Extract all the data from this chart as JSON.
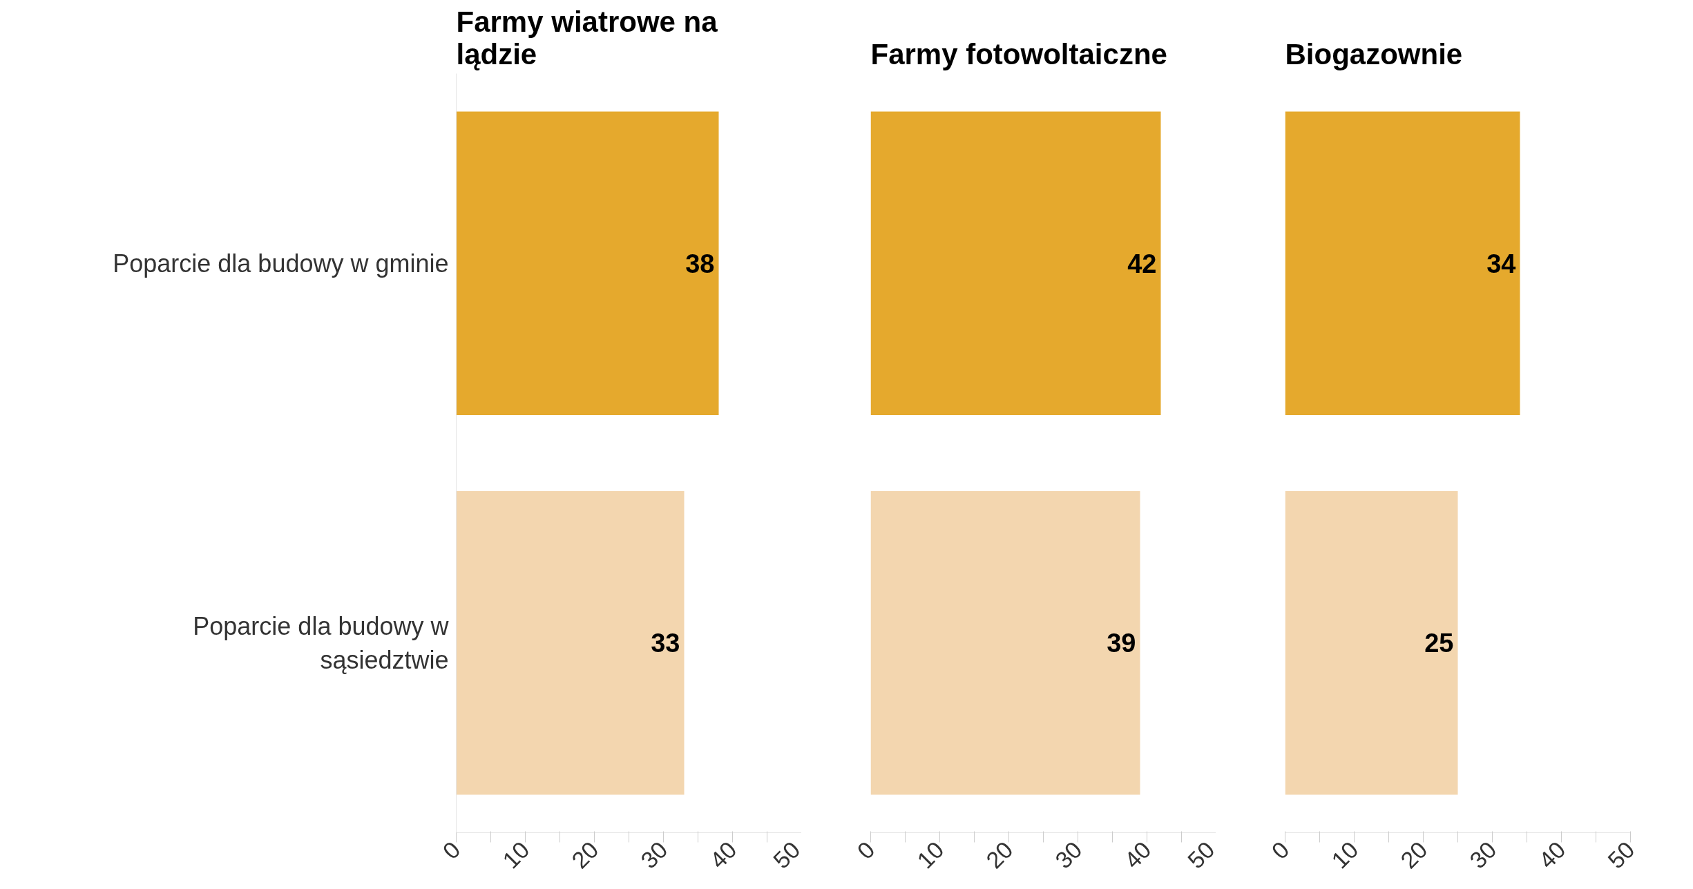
{
  "chart_data": [
    {
      "type": "bar",
      "orientation": "horizontal",
      "title": "Farmy wiatrowe na lądzie",
      "categories": [
        "Poparcie dla budowy w gminie",
        "Poparcie dla budowy w sąsiedztwie"
      ],
      "values": [
        38,
        33
      ],
      "colors": [
        "#e5a92d",
        "#f3d6af"
      ],
      "xlim": [
        0,
        50
      ],
      "xticks": [
        0,
        {
          "value": 5,
          "label": null
        },
        10,
        {
          "value": 15,
          "label": null
        },
        20,
        {
          "value": 25,
          "label": null
        },
        30,
        {
          "value": 35,
          "label": null
        },
        40,
        {
          "value": 45,
          "label": null
        },
        50
      ],
      "data_labels": true,
      "grid": false
    },
    {
      "type": "bar",
      "orientation": "horizontal",
      "title": "Farmy fotowoltaiczne",
      "categories": [
        "Poparcie dla budowy w gminie",
        "Poparcie dla budowy w sąsiedztwie"
      ],
      "values": [
        42,
        39
      ],
      "colors": [
        "#e5a92d",
        "#f3d6af"
      ],
      "xlim": [
        0,
        50
      ],
      "xticks": [
        0,
        {
          "value": 5,
          "label": null
        },
        10,
        {
          "value": 15,
          "label": null
        },
        20,
        {
          "value": 25,
          "label": null
        },
        30,
        {
          "value": 35,
          "label": null
        },
        40,
        {
          "value": 45,
          "label": null
        },
        50
      ],
      "data_labels": true,
      "grid": false,
      "tick_labels": "x"
    },
    {
      "type": "bar",
      "orientation": "horizontal",
      "title": "Biogazownie",
      "categories": [
        "Poparcie dla budowy w gminie",
        "Poparcie dla budowy w sąsiedztwie"
      ],
      "values": [
        34,
        25
      ],
      "colors": [
        "#e5a92d",
        "#f3d6af"
      ],
      "xlim": [
        0,
        50
      ],
      "xticks": [
        0,
        {
          "value": 5,
          "label": null
        },
        10,
        {
          "value": 15,
          "label": null
        },
        20,
        {
          "value": 25,
          "label": null
        },
        30,
        {
          "value": 35,
          "label": null
        },
        40,
        {
          "value": 45,
          "label": null
        },
        50
      ],
      "data_labels": true,
      "grid": false,
      "tick_labels": "x"
    }
  ]
}
